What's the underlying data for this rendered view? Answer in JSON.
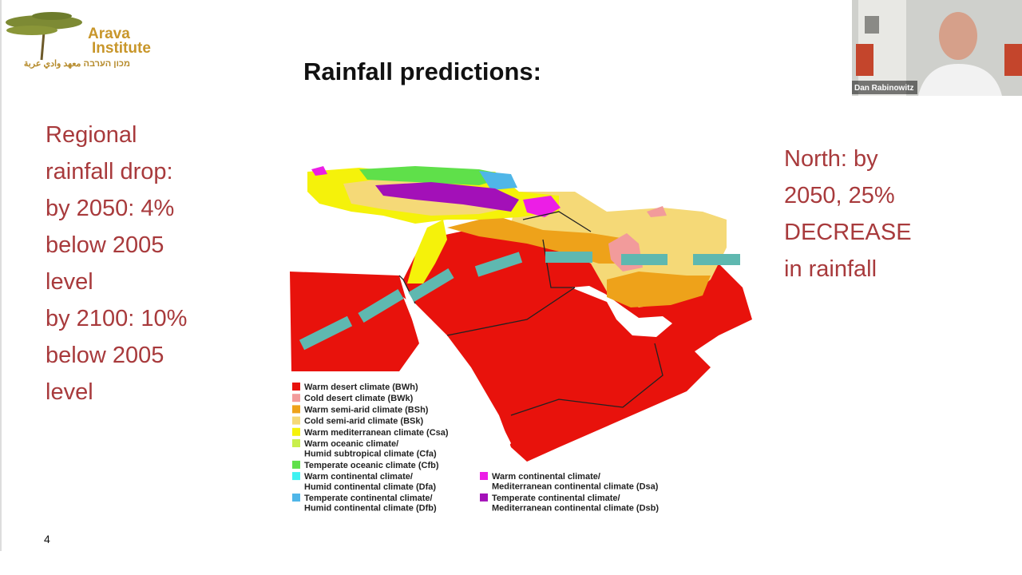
{
  "logo": {
    "name_line1": "Arava",
    "name_line2": "Institute",
    "subtitle": "מכון הערבה معهد وادي عربة"
  },
  "slide": {
    "title": "Rainfall predictions:",
    "left_text": [
      "Regional",
      "rainfall drop:",
      "by 2050:  4%",
      "below 2005",
      "level",
      "by 2100:  10%",
      "below 2005",
      "level"
    ],
    "right_text": [
      "North: by",
      "2050,  25%",
      "DECREASE",
      "in rainfall"
    ],
    "page_number": "4"
  },
  "map_legend": {
    "left": [
      {
        "color": "#e8120c",
        "lines": [
          "Warm desert climate (BWh)"
        ]
      },
      {
        "color": "#f29b9b",
        "lines": [
          "Cold desert climate (BWk)"
        ]
      },
      {
        "color": "#eea21a",
        "lines": [
          "Warm semi-arid climate (BSh)"
        ]
      },
      {
        "color": "#f5d977",
        "lines": [
          "Cold semi-arid climate (BSk)"
        ]
      },
      {
        "color": "#f5f20a",
        "lines": [
          "Warm mediterranean climate (Csa)"
        ]
      },
      {
        "color": "#c8ef4c",
        "lines": [
          "Warm oceanic climate/",
          "Humid subtropical climate (Cfa)"
        ]
      },
      {
        "color": "#5fe04a",
        "lines": [
          "Temperate oceanic climate (Cfb)"
        ]
      },
      {
        "color": "#3ff2f2",
        "lines": [
          "Warm continental climate/",
          "Humid continental climate (Dfa)"
        ]
      },
      {
        "color": "#4fb6e8",
        "lines": [
          "Temperate continental climate/",
          "Humid continental climate (Dfb)"
        ]
      }
    ],
    "right": [
      {
        "color": "#ec1ee6",
        "lines": [
          "Warm continental climate/",
          "Mediterranean continental climate (Dsa)"
        ]
      },
      {
        "color": "#a310b8",
        "lines": [
          "Temperate continental climate/",
          "Mediterranean continental climate (Dsb)"
        ]
      }
    ]
  },
  "video": {
    "participant_name": "Dan Rabinowitz"
  }
}
